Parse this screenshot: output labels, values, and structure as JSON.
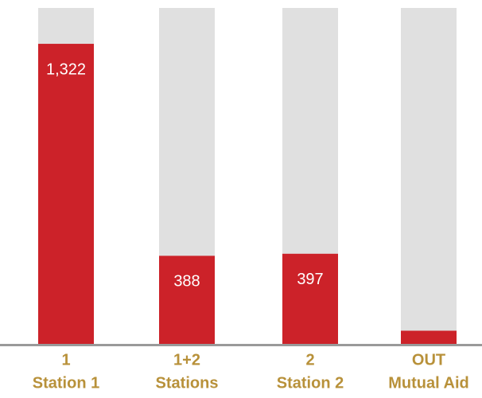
{
  "chart_data": {
    "type": "bar",
    "categories": [
      [
        "1",
        "Station 1"
      ],
      [
        "1+2",
        "Stations"
      ],
      [
        "2",
        "Station 2"
      ],
      [
        "OUT",
        "Mutual Aid"
      ]
    ],
    "values": [
      1322,
      388,
      397,
      58
    ],
    "value_labels": [
      "1,322",
      "388",
      "397",
      "58"
    ],
    "color": "#cc2229",
    "track_color": "#e0e0e0",
    "label_color": "#b8913a",
    "ylim": [
      0,
      1480
    ]
  }
}
